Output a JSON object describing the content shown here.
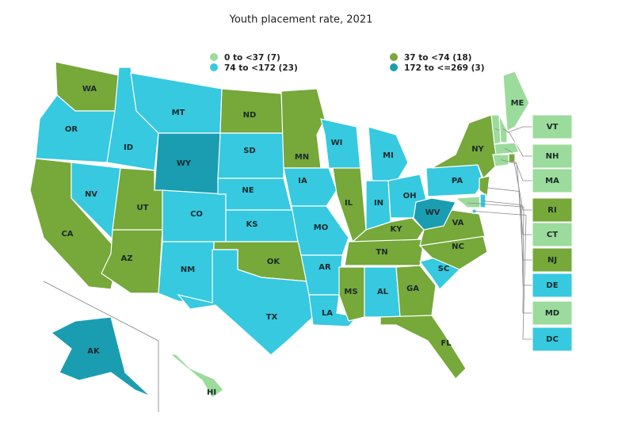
{
  "title": "Youth placement rate, 2021",
  "legend": [
    {
      "label": "0 to <37 (7)",
      "color": "#9bdb9b"
    },
    {
      "label": "37 to <74 (18)",
      "color": "#76a83a"
    },
    {
      "label": "74 to <172 (23)",
      "color": "#36c9e0"
    },
    {
      "label": "172 to <=269 (3)",
      "color": "#1a9db0"
    }
  ],
  "states": [
    {
      "abbr": "WA",
      "color": "#76a83a"
    },
    {
      "abbr": "OR",
      "color": "#36c9e0"
    },
    {
      "abbr": "CA",
      "color": "#76a83a"
    },
    {
      "abbr": "NV",
      "color": "#36c9e0"
    },
    {
      "abbr": "ID",
      "color": "#36c9e0"
    },
    {
      "abbr": "MT",
      "color": "#36c9e0"
    },
    {
      "abbr": "WY",
      "color": "#1a9db0"
    },
    {
      "abbr": "UT",
      "color": "#76a83a"
    },
    {
      "abbr": "AZ",
      "color": "#76a83a"
    },
    {
      "abbr": "CO",
      "color": "#36c9e0"
    },
    {
      "abbr": "NM",
      "color": "#36c9e0"
    },
    {
      "abbr": "ND",
      "color": "#76a83a"
    },
    {
      "abbr": "SD",
      "color": "#36c9e0"
    },
    {
      "abbr": "NE",
      "color": "#36c9e0"
    },
    {
      "abbr": "KS",
      "color": "#36c9e0"
    },
    {
      "abbr": "OK",
      "color": "#76a83a"
    },
    {
      "abbr": "TX",
      "color": "#36c9e0"
    },
    {
      "abbr": "MN",
      "color": "#76a83a"
    },
    {
      "abbr": "IA",
      "color": "#36c9e0"
    },
    {
      "abbr": "MO",
      "color": "#36c9e0"
    },
    {
      "abbr": "AR",
      "color": "#36c9e0"
    },
    {
      "abbr": "LA",
      "color": "#36c9e0"
    },
    {
      "abbr": "WI",
      "color": "#36c9e0"
    },
    {
      "abbr": "IL",
      "color": "#76a83a"
    },
    {
      "abbr": "MI",
      "color": "#36c9e0"
    },
    {
      "abbr": "IN",
      "color": "#36c9e0"
    },
    {
      "abbr": "OH",
      "color": "#36c9e0"
    },
    {
      "abbr": "KY",
      "color": "#76a83a"
    },
    {
      "abbr": "TN",
      "color": "#76a83a"
    },
    {
      "abbr": "MS",
      "color": "#76a83a"
    },
    {
      "abbr": "AL",
      "color": "#36c9e0"
    },
    {
      "abbr": "GA",
      "color": "#76a83a"
    },
    {
      "abbr": "FL",
      "color": "#76a83a"
    },
    {
      "abbr": "SC",
      "color": "#36c9e0"
    },
    {
      "abbr": "NC",
      "color": "#76a83a"
    },
    {
      "abbr": "VA",
      "color": "#76a83a"
    },
    {
      "abbr": "WV",
      "color": "#1a9db0"
    },
    {
      "abbr": "PA",
      "color": "#36c9e0"
    },
    {
      "abbr": "NY",
      "color": "#76a83a"
    },
    {
      "abbr": "ME",
      "color": "#9bdb9b"
    },
    {
      "abbr": "VT",
      "color": "#9bdb9b"
    },
    {
      "abbr": "NH",
      "color": "#9bdb9b"
    },
    {
      "abbr": "MA",
      "color": "#9bdb9b"
    },
    {
      "abbr": "RI",
      "color": "#76a83a"
    },
    {
      "abbr": "CT",
      "color": "#9bdb9b"
    },
    {
      "abbr": "NJ",
      "color": "#76a83a"
    },
    {
      "abbr": "DE",
      "color": "#36c9e0"
    },
    {
      "abbr": "MD",
      "color": "#9bdb9b"
    },
    {
      "abbr": "DC",
      "color": "#36c9e0"
    },
    {
      "abbr": "AK",
      "color": "#1a9db0"
    },
    {
      "abbr": "HI",
      "color": "#9bdb9b"
    }
  ]
}
